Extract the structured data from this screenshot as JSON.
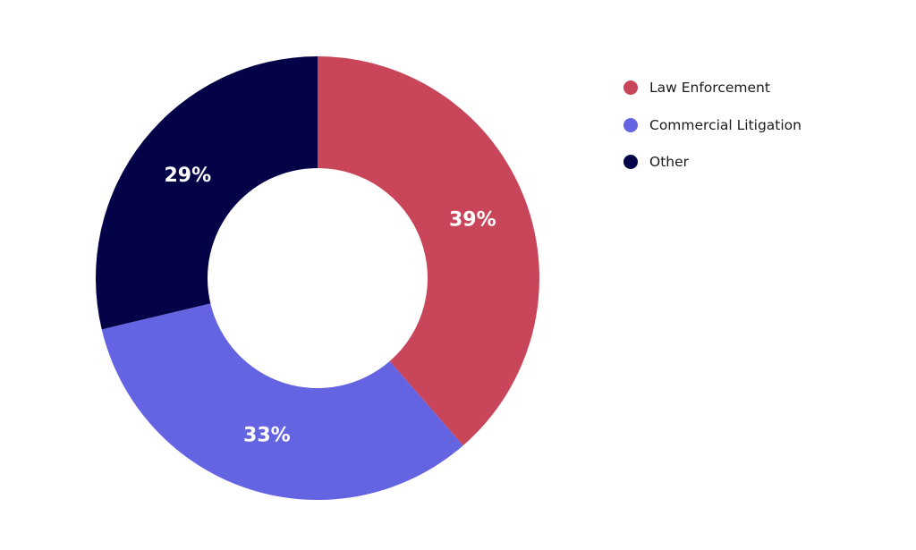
{
  "chart_data": {
    "type": "pie",
    "title": "",
    "donut": true,
    "categories": [
      "Law Enforcement",
      "Commercial Litigation",
      "Other"
    ],
    "values": [
      39,
      33,
      29
    ],
    "value_labels": [
      "39%",
      "33%",
      "29%"
    ],
    "colors": [
      "#c8455a",
      "#6464e2",
      "#050347"
    ],
    "legend_position": "top-right"
  }
}
